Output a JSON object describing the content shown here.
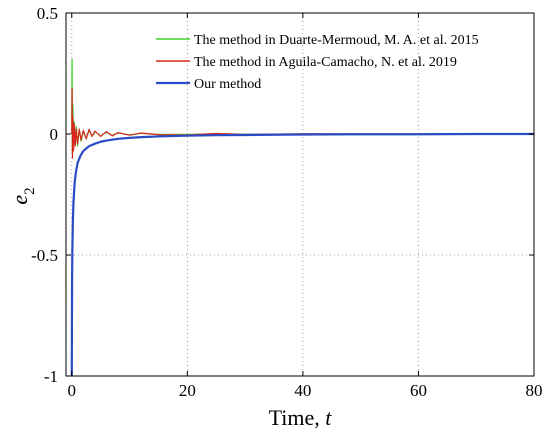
{
  "chart_data": {
    "type": "line",
    "xlabel": "Time, t",
    "xlabel_parts": {
      "text": "Time, ",
      "var": "t"
    },
    "ylabel": "e2",
    "ylabel_parts": {
      "base": "e",
      "sub": "2"
    },
    "xlim": [
      -1,
      80
    ],
    "ylim": [
      -1,
      0.5
    ],
    "xticks": [
      0,
      20,
      40,
      60,
      80
    ],
    "yticks": [
      -1,
      -0.5,
      0,
      0.5
    ],
    "xtick_labels": [
      "0",
      "20",
      "40",
      "60",
      "80"
    ],
    "ytick_labels": [
      "-1",
      "-0.5",
      "0",
      "0.5"
    ],
    "grid": true,
    "legend_position": "top-right",
    "series": [
      {
        "name": "The method in Duarte-Mermoud, M. A. et al. 2015",
        "color": "#3ccf2a",
        "x": [
          0,
          0.05,
          0.12,
          0.2,
          0.3,
          0.45,
          0.6,
          0.8,
          1.0,
          1.3,
          1.6,
          2.0,
          2.5,
          3.0,
          3.5,
          4.0,
          5.0,
          6.0,
          7.0,
          8.0,
          10.0,
          12.0,
          15.0,
          20.0,
          25.0,
          30.0,
          40.0,
          50.0,
          60.0,
          70.0,
          80.0
        ],
        "values": [
          0,
          0.31,
          -0.08,
          0.12,
          -0.06,
          0.05,
          -0.04,
          0.03,
          -0.05,
          0.02,
          -0.03,
          0.01,
          -0.02,
          0.015,
          -0.01,
          0.01,
          -0.008,
          0.008,
          -0.006,
          0.005,
          -0.004,
          0.003,
          -0.002,
          -0.002,
          0.001,
          -0.001,
          0.0,
          0.0,
          0.0,
          0.0,
          0.0
        ]
      },
      {
        "name": "The method in Aguila-Camacho, N. et al. 2019",
        "color": "#d9261c",
        "x": [
          0,
          0.05,
          0.12,
          0.2,
          0.3,
          0.45,
          0.6,
          0.8,
          1.0,
          1.3,
          1.6,
          2.0,
          2.5,
          3.0,
          3.5,
          4.0,
          5.0,
          6.0,
          7.0,
          8.0,
          10.0,
          12.0,
          15.0,
          20.0,
          25.0,
          30.0,
          40.0,
          50.0,
          60.0,
          70.0,
          80.0
        ],
        "values": [
          0,
          0.19,
          -0.1,
          0.07,
          -0.07,
          0.04,
          -0.05,
          0.02,
          -0.04,
          0.02,
          -0.025,
          0.015,
          -0.02,
          0.02,
          -0.01,
          0.012,
          -0.01,
          0.01,
          -0.008,
          0.006,
          -0.005,
          0.004,
          -0.003,
          -0.004,
          0.002,
          -0.002,
          0.001,
          0.0,
          0.0,
          0.0,
          0.0
        ]
      },
      {
        "name": "Our method",
        "color": "#2a4bc7",
        "x": [
          0,
          0.05,
          0.1,
          0.2,
          0.3,
          0.5,
          0.7,
          1.0,
          1.5,
          2.0,
          3.0,
          4.0,
          5.0,
          6.0,
          8.0,
          10.0,
          12.0,
          15.0,
          20.0,
          25.0,
          30.0,
          40.0,
          50.0,
          60.0,
          70.0,
          80.0
        ],
        "values": [
          -1.0,
          -0.6,
          -0.48,
          -0.35,
          -0.28,
          -0.2,
          -0.16,
          -0.12,
          -0.09,
          -0.07,
          -0.05,
          -0.04,
          -0.032,
          -0.027,
          -0.02,
          -0.016,
          -0.013,
          -0.01,
          -0.007,
          -0.005,
          -0.004,
          -0.002,
          -0.001,
          -0.001,
          0.0,
          0.0
        ]
      }
    ]
  }
}
